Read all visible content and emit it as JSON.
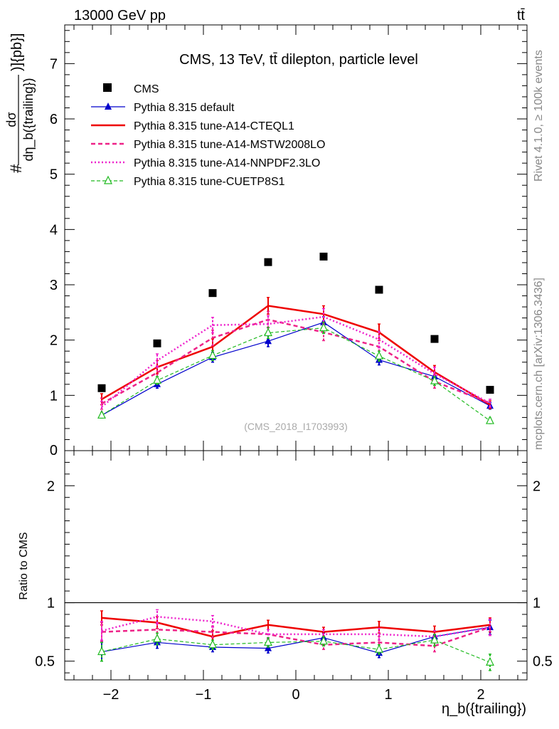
{
  "header": {
    "energy_label": "13000 GeV pp",
    "process_label": "tt̄",
    "side_label_rivet": "Rivet 4.1.0, ≥ 100k events",
    "side_label_source": "mcplots.cern.ch [arXiv:1306.3436]",
    "watermark": "(CMS_2018_I1703993)"
  },
  "chart_data": [
    {
      "type": "line",
      "title": "CMS, 13 TeV, tt̄ dilepton, particle level",
      "ylabel_numerator": "dσ",
      "ylabel_denominator": "dη_b({trailing})",
      "ylabel_prefix": "#",
      "ylabel_suffix": ")]{pb}]",
      "xlabel": "η_b({trailing})",
      "xlim": [
        -2.5,
        2.5
      ],
      "ylim": [
        0,
        7.7
      ],
      "x_ticks": [
        -2,
        -1,
        0,
        1,
        2
      ],
      "x_tick_labels": [
        "−2",
        "−1",
        "0",
        "1",
        "2"
      ],
      "y_ticks": [
        1,
        2,
        3,
        4,
        5,
        6,
        7
      ],
      "y_tick_labels": [
        "1",
        "2",
        "3",
        "4",
        "5",
        "6",
        "7"
      ],
      "y_zero_label": "0",
      "x": [
        -2.1,
        -1.5,
        -0.9,
        -0.3,
        0.3,
        0.9,
        1.5,
        2.1
      ],
      "data": {
        "name": "CMS",
        "values": [
          1.13,
          1.94,
          2.85,
          3.41,
          3.51,
          2.91,
          2.02,
          1.1
        ],
        "color": "#000000"
      },
      "series": [
        {
          "name": "Pythia 8.315 default",
          "color": "#0000cc",
          "values": [
            0.64,
            1.2,
            1.69,
            1.98,
            2.32,
            1.64,
            1.34,
            0.81
          ],
          "errors": [
            0.05,
            0.07,
            0.09,
            0.1,
            0.1,
            0.09,
            0.08,
            0.06
          ]
        },
        {
          "name": "Pythia 8.315 tune-A14-CTEQL1",
          "color": "#ee0000",
          "values": [
            0.93,
            1.51,
            1.88,
            2.62,
            2.47,
            2.14,
            1.42,
            0.83
          ],
          "errors": [
            0.1,
            0.12,
            0.14,
            0.15,
            0.15,
            0.15,
            0.12,
            0.07
          ]
        },
        {
          "name": "Pythia 8.315 tune-A14-MSTW2008LO",
          "color": "#ee2288",
          "values": [
            0.85,
            1.41,
            2.04,
            2.37,
            2.14,
            1.88,
            1.25,
            0.86
          ],
          "errors": [
            0.1,
            0.12,
            0.14,
            0.15,
            0.15,
            0.15,
            0.12,
            0.07
          ]
        },
        {
          "name": "Pythia 8.315 tune-A14-NNPDF2.3LO",
          "color": "#ee22cc",
          "values": [
            0.79,
            1.63,
            2.27,
            2.29,
            2.42,
            2.01,
            1.39,
            0.86
          ],
          "errors": [
            0.1,
            0.12,
            0.14,
            0.15,
            0.15,
            0.15,
            0.12,
            0.07
          ]
        },
        {
          "name": "Pythia 8.315 tune-CUETP8S1",
          "color": "#22bb22",
          "values": [
            0.64,
            1.27,
            1.72,
            2.13,
            2.22,
            1.71,
            1.26,
            0.54
          ],
          "errors": [
            0.05,
            0.07,
            0.09,
            0.1,
            0.1,
            0.09,
            0.08,
            0.05
          ]
        }
      ]
    },
    {
      "type": "line",
      "title": "",
      "ylabel": "Ratio to CMS",
      "xlabel": "η_b({trailing})",
      "xlim": [
        -2.5,
        2.5
      ],
      "ylim": [
        0.34,
        2.3
      ],
      "y_ticks": [
        0.5,
        1,
        2
      ],
      "y_tick_labels": [
        "0.5",
        "1",
        "2"
      ],
      "x": [
        -2.1,
        -1.5,
        -0.9,
        -0.3,
        0.3,
        0.9,
        1.5,
        2.1
      ],
      "reference": 1,
      "series": [
        {
          "name": "Pythia 8.315 default",
          "values": [
            0.58,
            0.66,
            0.62,
            0.61,
            0.7,
            0.57,
            0.71,
            0.79
          ],
          "errors": [
            0.08,
            0.05,
            0.04,
            0.04,
            0.04,
            0.04,
            0.05,
            0.06
          ]
        },
        {
          "name": "Pythia 8.315 tune-A14-CTEQL1",
          "values": [
            0.87,
            0.83,
            0.71,
            0.81,
            0.75,
            0.79,
            0.75,
            0.81
          ],
          "errors": [
            0.06,
            0.05,
            0.05,
            0.04,
            0.04,
            0.05,
            0.05,
            0.06
          ]
        },
        {
          "name": "Pythia 8.315 tune-A14-MSTW2008LO",
          "values": [
            0.75,
            0.77,
            0.75,
            0.73,
            0.64,
            0.66,
            0.63,
            0.79
          ],
          "errors": [
            0.08,
            0.06,
            0.05,
            0.04,
            0.04,
            0.05,
            0.05,
            0.07
          ]
        },
        {
          "name": "Pythia 8.315 tune-A14-NNPDF2.3LO",
          "values": [
            0.76,
            0.88,
            0.84,
            0.73,
            0.73,
            0.73,
            0.71,
            0.79
          ],
          "errors": [
            0.08,
            0.06,
            0.05,
            0.04,
            0.04,
            0.05,
            0.05,
            0.07
          ]
        },
        {
          "name": "Pythia 8.315 tune-CUETP8S1",
          "values": [
            0.58,
            0.69,
            0.64,
            0.66,
            0.67,
            0.6,
            0.68,
            0.49
          ],
          "errors": [
            0.08,
            0.05,
            0.04,
            0.04,
            0.04,
            0.04,
            0.05,
            0.07
          ]
        }
      ]
    }
  ]
}
